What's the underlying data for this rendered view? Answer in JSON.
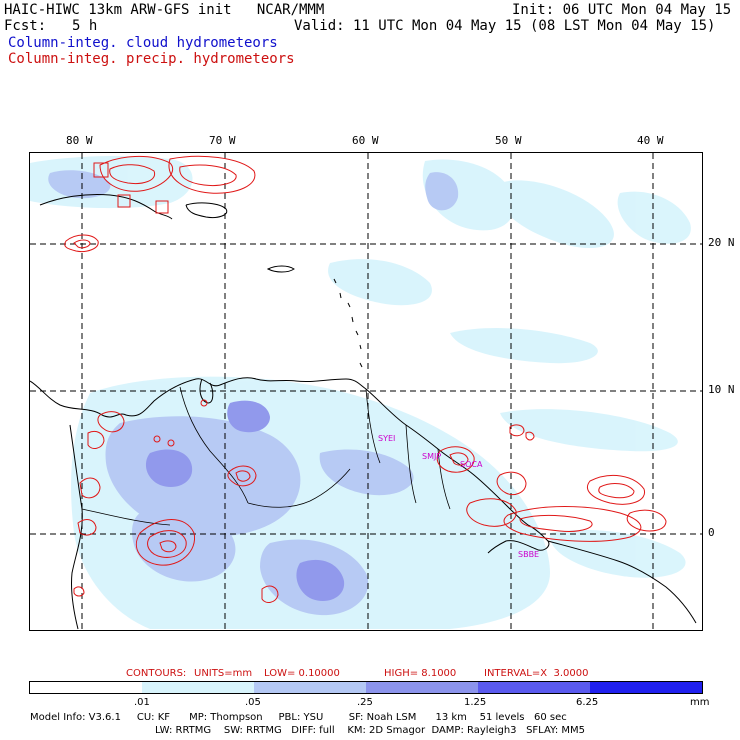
{
  "header": {
    "title": "HAIC-HIWC 13km ARW-GFS init   NCAR/MMM",
    "init": "Init: 06 UTC Mon 04 May 15",
    "fcst_label": "Fcst:",
    "fcst_value": "5 h",
    "valid": "Valid: 11 UTC Mon 04 May 15 (08 LST Mon 04 May 15)",
    "field_blue": "Column-integ. cloud hydrometeors",
    "field_red": "Column-integ. precip. hydrometeors"
  },
  "map": {
    "lon_labels": [
      "80 W",
      "70 W",
      "60 W",
      "50 W",
      "40 W"
    ],
    "lat_labels": [
      "20 N",
      "10 N",
      "0"
    ],
    "stations": [
      "SYEI",
      "SMJP",
      "SOCA",
      "SBBE"
    ],
    "colors": {
      "coast": "#000000",
      "grid": "#000000",
      "precip_contour": "#e01818"
    }
  },
  "contours_info": {
    "label": "CONTOURS:",
    "units": "UNITS=mm",
    "low": "LOW= 0.10000",
    "high": "HIGH= 8.1000",
    "interval": "INTERVAL=X  3.0000"
  },
  "colorbar": {
    "colors": [
      "#ffffff",
      "#d8f4fc",
      "#b4c8f4",
      "#8c94ec",
      "#5a5aee",
      "#2020ee"
    ],
    "labels": [
      ".01",
      ".05",
      ".25",
      "1.25",
      "6.25"
    ],
    "units": "mm"
  },
  "model_info": {
    "line1": "Model Info: V3.6.1     CU: KF      MP: Thompson     PBL: YSU        SF: Noah LSM      13 km    51 levels   60 sec",
    "line2": "LW: RRTMG    SW: RRTMG   DIFF: full    KM: 2D Smagor  DAMP: Rayleigh3   SFLAY: MM5"
  }
}
